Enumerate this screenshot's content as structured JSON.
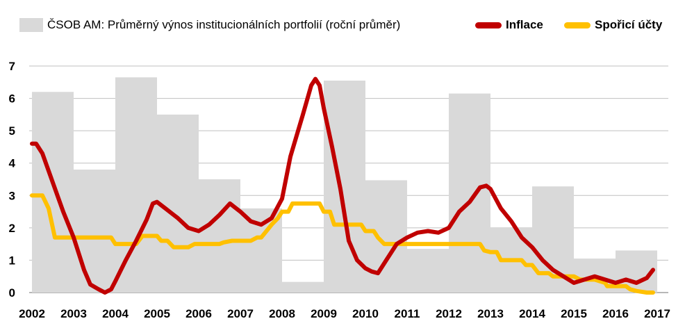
{
  "chart_data": {
    "type": "bar+line",
    "legend": {
      "bars": "ČSOB AM: Průměrný výnos institucionálních portfolií (roční průměr)",
      "inflation": "Inflace",
      "savings": "Spořicí účty"
    },
    "colors": {
      "bars": "#d9d9d9",
      "inflation": "#c00000",
      "savings": "#ffc000",
      "grid": "#bfbfbf"
    },
    "x_ticks": [
      "2002",
      "2003",
      "2004",
      "2005",
      "2006",
      "2007",
      "2008",
      "2009",
      "2010",
      "2011",
      "2012",
      "2013",
      "2014",
      "2015",
      "2016",
      "2017"
    ],
    "y_ticks": [
      "0",
      "1",
      "2",
      "3",
      "4",
      "5",
      "6",
      "7"
    ],
    "ylim": [
      0,
      7
    ],
    "xlim": [
      2002,
      2017
    ],
    "grid": true,
    "bars": [
      {
        "year": 2002,
        "value": 6.2
      },
      {
        "year": 2003,
        "value": 3.8
      },
      {
        "year": 2004,
        "value": 6.65
      },
      {
        "year": 2005,
        "value": 5.5
      },
      {
        "year": 2006,
        "value": 3.5
      },
      {
        "year": 2007,
        "value": 2.6
      },
      {
        "year": 2008,
        "value": 0.33
      },
      {
        "year": 2009,
        "value": 6.55
      },
      {
        "year": 2010,
        "value": 3.47
      },
      {
        "year": 2011,
        "value": 1.35
      },
      {
        "year": 2012,
        "value": 6.15
      },
      {
        "year": 2013,
        "value": 2.0
      },
      {
        "year": 2014,
        "value": 3.28
      },
      {
        "year": 2015,
        "value": 1.05
      },
      {
        "year": 2016,
        "value": 1.3
      }
    ],
    "series": [
      {
        "name": "Inflace",
        "points": [
          [
            2002.0,
            4.6
          ],
          [
            2002.1,
            4.6
          ],
          [
            2002.25,
            4.3
          ],
          [
            2002.5,
            3.4
          ],
          [
            2002.75,
            2.5
          ],
          [
            2003.0,
            1.7
          ],
          [
            2003.25,
            0.7
          ],
          [
            2003.4,
            0.25
          ],
          [
            2003.6,
            0.1
          ],
          [
            2003.75,
            0.0
          ],
          [
            2003.9,
            0.1
          ],
          [
            2004.0,
            0.35
          ],
          [
            2004.25,
            1.0
          ],
          [
            2004.5,
            1.6
          ],
          [
            2004.75,
            2.25
          ],
          [
            2004.9,
            2.75
          ],
          [
            2005.0,
            2.8
          ],
          [
            2005.2,
            2.6
          ],
          [
            2005.5,
            2.3
          ],
          [
            2005.75,
            2.0
          ],
          [
            2006.0,
            1.9
          ],
          [
            2006.25,
            2.1
          ],
          [
            2006.5,
            2.4
          ],
          [
            2006.75,
            2.75
          ],
          [
            2007.0,
            2.5
          ],
          [
            2007.25,
            2.2
          ],
          [
            2007.5,
            2.1
          ],
          [
            2007.75,
            2.3
          ],
          [
            2008.0,
            2.9
          ],
          [
            2008.2,
            4.2
          ],
          [
            2008.5,
            5.5
          ],
          [
            2008.7,
            6.4
          ],
          [
            2008.8,
            6.6
          ],
          [
            2008.9,
            6.4
          ],
          [
            2009.0,
            5.7
          ],
          [
            2009.2,
            4.5
          ],
          [
            2009.4,
            3.2
          ],
          [
            2009.6,
            1.6
          ],
          [
            2009.8,
            1.0
          ],
          [
            2010.0,
            0.75
          ],
          [
            2010.15,
            0.65
          ],
          [
            2010.3,
            0.6
          ],
          [
            2010.5,
            1.0
          ],
          [
            2010.75,
            1.5
          ],
          [
            2011.0,
            1.7
          ],
          [
            2011.25,
            1.85
          ],
          [
            2011.5,
            1.9
          ],
          [
            2011.75,
            1.85
          ],
          [
            2012.0,
            2.0
          ],
          [
            2012.25,
            2.5
          ],
          [
            2012.5,
            2.8
          ],
          [
            2012.75,
            3.25
          ],
          [
            2012.9,
            3.3
          ],
          [
            2013.0,
            3.2
          ],
          [
            2013.25,
            2.6
          ],
          [
            2013.5,
            2.2
          ],
          [
            2013.75,
            1.7
          ],
          [
            2014.0,
            1.4
          ],
          [
            2014.25,
            1.0
          ],
          [
            2014.5,
            0.7
          ],
          [
            2014.75,
            0.5
          ],
          [
            2015.0,
            0.3
          ],
          [
            2015.25,
            0.4
          ],
          [
            2015.5,
            0.5
          ],
          [
            2015.75,
            0.4
          ],
          [
            2016.0,
            0.3
          ],
          [
            2016.25,
            0.4
          ],
          [
            2016.5,
            0.3
          ],
          [
            2016.75,
            0.45
          ],
          [
            2016.9,
            0.7
          ]
        ]
      },
      {
        "name": "Spořicí účty",
        "points": [
          [
            2002.0,
            3.0
          ],
          [
            2002.25,
            3.0
          ],
          [
            2002.4,
            2.6
          ],
          [
            2002.55,
            1.7
          ],
          [
            2003.0,
            1.7
          ],
          [
            2003.5,
            1.7
          ],
          [
            2003.9,
            1.7
          ],
          [
            2004.0,
            1.5
          ],
          [
            2004.5,
            1.5
          ],
          [
            2004.65,
            1.75
          ],
          [
            2005.0,
            1.75
          ],
          [
            2005.1,
            1.6
          ],
          [
            2005.25,
            1.6
          ],
          [
            2005.4,
            1.4
          ],
          [
            2005.75,
            1.4
          ],
          [
            2005.9,
            1.5
          ],
          [
            2006.5,
            1.5
          ],
          [
            2006.6,
            1.55
          ],
          [
            2006.8,
            1.6
          ],
          [
            2007.25,
            1.6
          ],
          [
            2007.4,
            1.7
          ],
          [
            2007.5,
            1.7
          ],
          [
            2007.75,
            2.1
          ],
          [
            2007.9,
            2.3
          ],
          [
            2008.0,
            2.5
          ],
          [
            2008.15,
            2.5
          ],
          [
            2008.25,
            2.75
          ],
          [
            2008.75,
            2.75
          ],
          [
            2008.9,
            2.75
          ],
          [
            2009.0,
            2.5
          ],
          [
            2009.15,
            2.5
          ],
          [
            2009.25,
            2.1
          ],
          [
            2009.5,
            2.1
          ],
          [
            2009.9,
            2.1
          ],
          [
            2010.0,
            1.9
          ],
          [
            2010.2,
            1.9
          ],
          [
            2010.3,
            1.7
          ],
          [
            2010.45,
            1.5
          ],
          [
            2011.0,
            1.5
          ],
          [
            2011.5,
            1.5
          ],
          [
            2012.0,
            1.5
          ],
          [
            2012.5,
            1.5
          ],
          [
            2012.75,
            1.5
          ],
          [
            2012.85,
            1.3
          ],
          [
            2013.0,
            1.25
          ],
          [
            2013.15,
            1.25
          ],
          [
            2013.25,
            1.0
          ],
          [
            2013.5,
            1.0
          ],
          [
            2013.75,
            1.0
          ],
          [
            2013.85,
            0.85
          ],
          [
            2014.0,
            0.85
          ],
          [
            2014.15,
            0.6
          ],
          [
            2014.4,
            0.6
          ],
          [
            2014.5,
            0.5
          ],
          [
            2015.0,
            0.5
          ],
          [
            2015.15,
            0.4
          ],
          [
            2015.5,
            0.4
          ],
          [
            2015.75,
            0.3
          ],
          [
            2015.8,
            0.2
          ],
          [
            2016.0,
            0.2
          ],
          [
            2016.25,
            0.2
          ],
          [
            2016.35,
            0.1
          ],
          [
            2016.5,
            0.05
          ],
          [
            2016.75,
            0.0
          ],
          [
            2016.9,
            0.0
          ]
        ]
      }
    ]
  }
}
